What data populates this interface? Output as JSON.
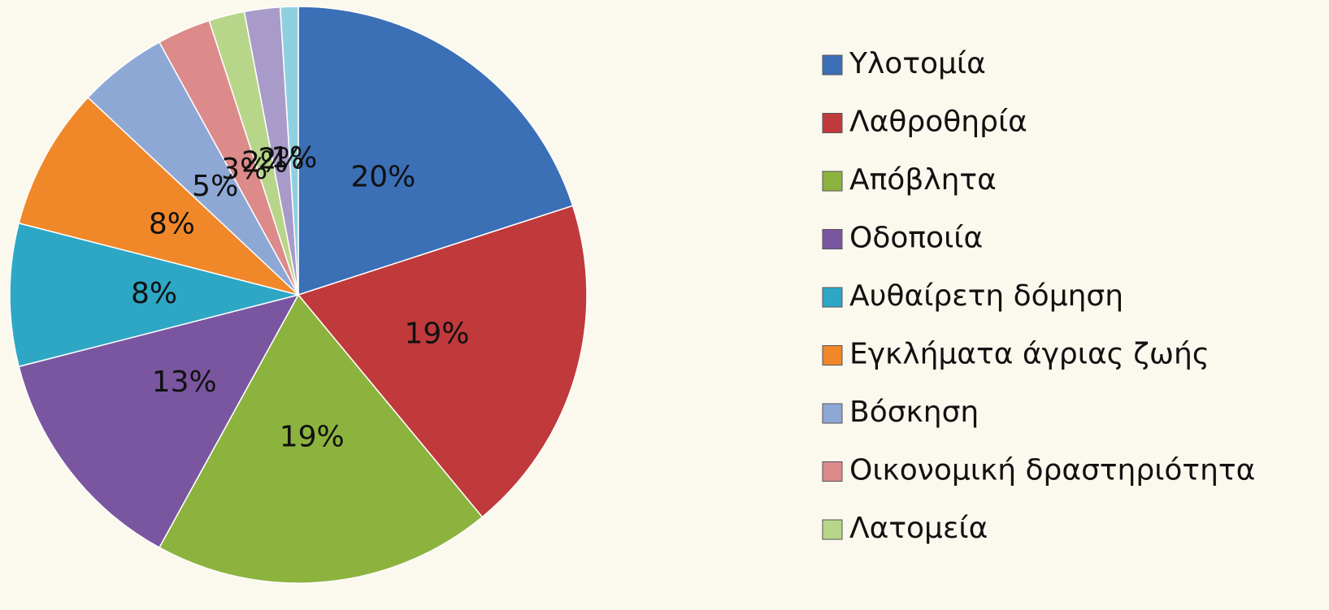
{
  "chart_data": {
    "type": "pie",
    "categories": [
      "Υλοτομία",
      "Λαθροθηρία",
      "Απόβλητα",
      "Οδοποιία",
      "Αυθαίρετη δόμηση",
      "Εγκλήματα άγριας ζωής",
      "Βόσκηση",
      "Οικονομική δραστηριότητα",
      "Λατομεία",
      null,
      null
    ],
    "values": [
      20,
      19,
      19,
      13,
      8,
      8,
      5,
      3,
      2,
      2,
      1
    ],
    "value_labels": [
      "20%",
      "19%",
      "19%",
      "13%",
      "8%",
      "8%",
      "5%",
      "3%",
      "2%",
      "2%",
      "1%"
    ],
    "colors": [
      "#3b6fb6",
      "#c0393b",
      "#8db33f",
      "#7a56a0",
      "#2ea7c5",
      "#f0882a",
      "#8ea8d6",
      "#dc8a8a",
      "#b8d68a",
      "#a99bc9",
      "#8fd0e0"
    ],
    "legend": "right"
  }
}
